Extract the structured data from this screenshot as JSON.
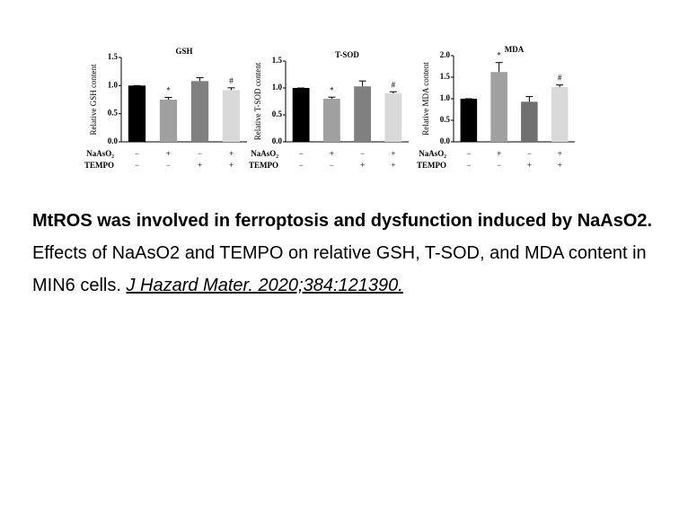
{
  "chart_data": [
    {
      "type": "bar",
      "title": "GSH",
      "ylabel": "Relative GSH content",
      "values": [
        1.0,
        0.75,
        1.08,
        0.92
      ],
      "errors": [
        0,
        0.04,
        0.06,
        0.04
      ],
      "colors": [
        "#000000",
        "#a0a0a0",
        "#808080",
        "#d9d9d9"
      ],
      "annotations": [
        null,
        "*",
        null,
        "#"
      ],
      "ylim": [
        0,
        1.5
      ],
      "yticks": [
        {
          "value": 0,
          "label": "0.0"
        },
        0.5,
        {
          "value": 1,
          "label": "1.0"
        },
        1.5
      ],
      "conditions": [
        {
          "label": "NaAsO₂",
          "signs": [
            "−",
            "+",
            "−",
            "+"
          ]
        },
        {
          "label": "TEMPO",
          "signs": [
            "−",
            "−",
            "+",
            "+"
          ]
        }
      ]
    },
    {
      "type": "bar",
      "title": "T-SOD",
      "ylabel": "Relative T-SOD content",
      "values": [
        1.0,
        0.8,
        1.03,
        0.9
      ],
      "errors": [
        0,
        0.03,
        0.1,
        0.03
      ],
      "colors": [
        "#000000",
        "#a0a0a0",
        "#808080",
        "#d9d9d9"
      ],
      "annotations": [
        null,
        "*",
        null,
        "#"
      ],
      "ylim": [
        0,
        1.5
      ],
      "yticks": [
        {
          "value": 0,
          "label": "0.0"
        },
        0.5,
        {
          "value": 1,
          "label": "1.0"
        },
        1.5
      ],
      "conditions": [
        {
          "label": "NaAsO₂",
          "signs": [
            "−",
            "+",
            "−",
            "+"
          ]
        },
        {
          "label": "TEMPO",
          "signs": [
            "−",
            "−",
            "+",
            "+"
          ]
        }
      ]
    },
    {
      "type": "bar",
      "title": "MDA",
      "ylabel": "Relative MDA content",
      "values": [
        1.0,
        1.62,
        0.93,
        1.27
      ],
      "errors": [
        0,
        0.22,
        0.12,
        0.05
      ],
      "colors": [
        "#000000",
        "#a0a0a0",
        "#707070",
        "#d9d9d9"
      ],
      "annotations": [
        null,
        "*",
        null,
        "#"
      ],
      "ylim": [
        0,
        2
      ],
      "yticks": [
        {
          "value": 0,
          "label": "0.0"
        },
        0.5,
        {
          "value": 1,
          "label": "1.0"
        },
        1.5,
        {
          "value": 2,
          "label": "2.0"
        }
      ],
      "conditions": [
        {
          "label": "NaAsO₂",
          "signs": [
            "−",
            "+",
            "−",
            "+"
          ]
        },
        {
          "label": "TEMPO",
          "signs": [
            "−",
            "−",
            "+",
            "+"
          ]
        }
      ]
    }
  ],
  "caption": {
    "title": "MtROS was involved in ferroptosis and dysfunction induced by NaAsO2.",
    "text": "Effects of NaAsO2 and TEMPO on relative GSH, T-SOD, and MDA content in MIN6 cells.",
    "citation": "J Hazard Mater. 2020;384:121390."
  }
}
